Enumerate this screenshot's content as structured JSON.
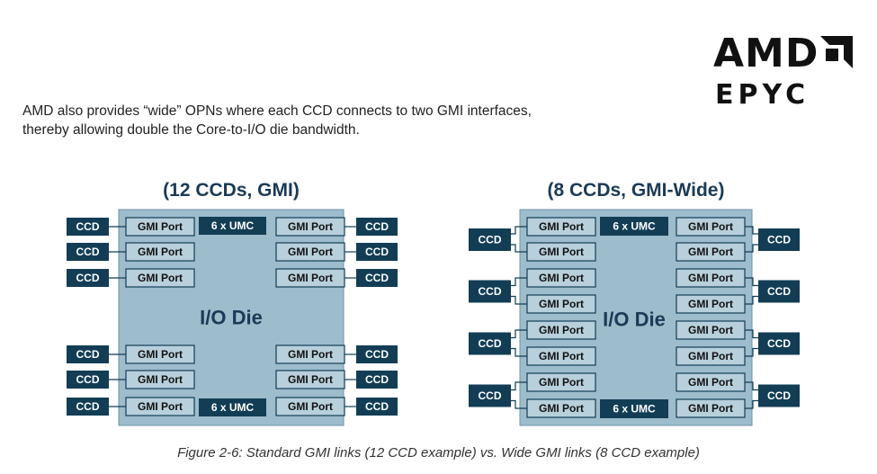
{
  "logo": {
    "brand": "AMD",
    "product": "EPYC"
  },
  "intro_text": {
    "line1": "AMD also provides “wide” OPNs where each CCD connects to two GMI interfaces,",
    "line2": "thereby allowing double the Core-to-I/O die bandwidth."
  },
  "diagram_standard": {
    "title": "(12 CCDs, GMI)",
    "die_label": "I/O Die",
    "umc_label": "6 x UMC",
    "port_label": "GMI Port",
    "ccd_label": "CCD"
  },
  "diagram_wide": {
    "title": "(8 CCDs, GMI-Wide)",
    "die_label": "I/O Die",
    "umc_label": "6 x UMC",
    "port_label": "GMI Port",
    "ccd_label": "CCD"
  },
  "caption": "Figure 2-6: Standard GMI links (12 CCD example) vs. Wide GMI links (8 CCD example)",
  "colors": {
    "die": "#9dbccc",
    "box_dark": "#123d55",
    "port_fill": "#b8d0dc",
    "title": "#1b3a57"
  }
}
